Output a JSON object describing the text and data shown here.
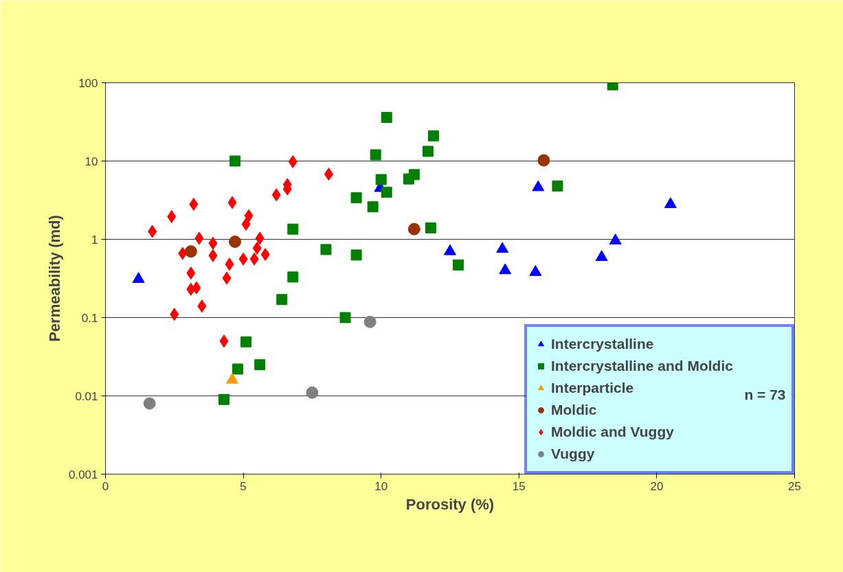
{
  "chart_data": {
    "type": "scatter",
    "xlabel": "Porosity (%)",
    "ylabel": "Permeability (md)",
    "xlim": [
      0,
      25
    ],
    "xticks": [
      0,
      5,
      10,
      15,
      20,
      25
    ],
    "ylim": [
      0.001,
      100
    ],
    "yticks": [
      0.001,
      0.01,
      0.1,
      1,
      10,
      100
    ],
    "log": "y",
    "grid": "y",
    "legend": "bottom right",
    "annotations": [
      "n = 73"
    ],
    "series": [
      {
        "name": "Intercrystalline",
        "color": "#0000ff",
        "marker": "triangle",
        "x": [
          1.2,
          9.97,
          12.5,
          14.4,
          14.5,
          15.6,
          15.7,
          18.0,
          18.5,
          20.5
        ],
        "values": [
          0.31,
          4.5,
          0.7,
          0.75,
          0.4,
          0.38,
          4.6,
          0.59,
          0.96,
          2.8
        ]
      },
      {
        "name": "Intercrystalline and Moldic",
        "color": "#008000",
        "marker": "square",
        "x": [
          4.7,
          4.3,
          4.8,
          5.1,
          5.6,
          6.4,
          6.8,
          6.8,
          8.0,
          8.7,
          9.1,
          9.1,
          9.7,
          9.8,
          10.2,
          10.0,
          10.2,
          11.0,
          11.2,
          11.7,
          11.9,
          11.8,
          12.8,
          16.4,
          18.4
        ],
        "values": [
          10,
          0.009,
          0.022,
          0.049,
          0.025,
          0.17,
          1.35,
          0.33,
          0.74,
          0.1,
          0.63,
          3.4,
          2.6,
          12,
          36,
          5.8,
          4.0,
          5.9,
          6.7,
          13.3,
          21,
          1.4,
          0.47,
          4.8,
          94
        ]
      },
      {
        "name": "Interparticle",
        "color": "#ff9900",
        "marker": "triangle",
        "x": [
          4.6
        ],
        "values": [
          0.016
        ]
      },
      {
        "name": "Moldic",
        "color": "#993300",
        "marker": "circle",
        "x": [
          3.1,
          4.7,
          11.2,
          15.9
        ],
        "values": [
          0.7,
          0.93,
          1.35,
          10.2
        ]
      },
      {
        "name": "Moldic and Vuggy",
        "color": "#ff0000",
        "marker": "diamond",
        "x": [
          1.7,
          2.4,
          3.2,
          2.8,
          3.4,
          3.9,
          3.9,
          3.1,
          3.1,
          3.3,
          3.5,
          2.5,
          4.3,
          4.4,
          4.5,
          4.6,
          5.2,
          5.1,
          5.0,
          5.4,
          5.6,
          5.5,
          5.8,
          6.2,
          6.6,
          6.6,
          6.8,
          8.1
        ],
        "values": [
          1.26,
          1.95,
          2.8,
          0.66,
          1.03,
          0.89,
          0.62,
          0.37,
          0.23,
          0.24,
          0.14,
          0.11,
          0.05,
          0.32,
          0.48,
          2.95,
          2.0,
          1.56,
          0.56,
          0.56,
          1.03,
          0.77,
          0.64,
          3.7,
          5.0,
          4.4,
          9.8,
          6.8
        ]
      },
      {
        "name": "Vuggy",
        "color": "#808080",
        "marker": "circle",
        "x": [
          1.6,
          7.5,
          9.6
        ],
        "values": [
          0.008,
          0.011,
          0.088
        ]
      }
    ]
  }
}
